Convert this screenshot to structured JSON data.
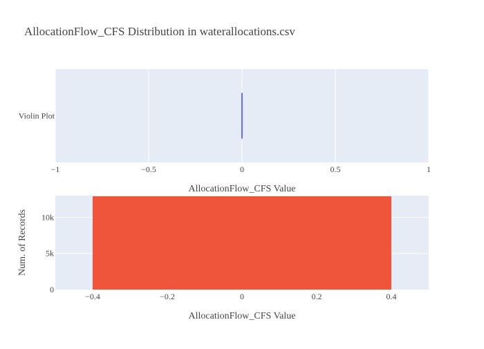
{
  "chart_data": {
    "title": "AllocationFlow_CFS Distribution in waterallocations.csv",
    "colors": {
      "background": "#ffffff",
      "plot_bg": "#E5ECF6",
      "grid": "#ffffff",
      "violin": "#636EFA",
      "bar": "#EF553B",
      "text": "#444444"
    },
    "subplots": [
      {
        "type": "violin",
        "category": "Violin Plot",
        "xlabel": "AllocationFlow_CFS Value",
        "xlim": [
          -1,
          1
        ],
        "xticks": [
          -1,
          -0.5,
          0,
          0.5,
          1
        ],
        "xtick_labels": [
          "−1",
          "−0.5",
          "0",
          "0.5",
          "1"
        ],
        "values": [
          0
        ]
      },
      {
        "type": "bar",
        "xlabel": "AllocationFlow_CFS Value",
        "ylabel": "Num. of Records",
        "xlim": [
          -0.5,
          0.5
        ],
        "ylim": [
          0,
          13000
        ],
        "xticks": [
          -0.4,
          -0.2,
          0,
          0.2,
          0.4
        ],
        "xtick_labels": [
          "−0.4",
          "−0.2",
          "0",
          "0.2",
          "0.4"
        ],
        "yticks": [
          0,
          5000,
          10000
        ],
        "ytick_labels": [
          "0",
          "5k",
          "10k"
        ],
        "bars": [
          {
            "x0": -0.4,
            "x1": 0.4,
            "value": 12900
          }
        ]
      }
    ]
  }
}
